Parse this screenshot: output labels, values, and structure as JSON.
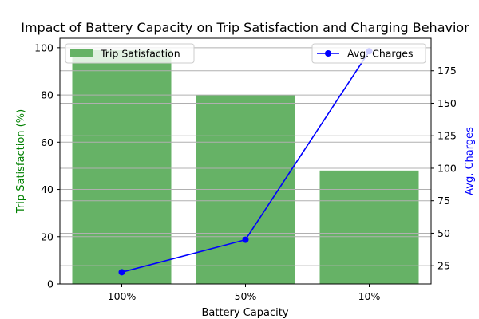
{
  "chart_data": {
    "type": "bar",
    "title": "Impact of Battery Capacity on Trip Satisfaction and Charging Behavior",
    "xlabel": "Battery Capacity",
    "categories": [
      "100%",
      "50%",
      "10%"
    ],
    "grid": true,
    "series": [
      {
        "name": "Trip Satisfaction",
        "type": "bar",
        "axis": "left",
        "color": "#66b266",
        "values": [
          99,
          80,
          48
        ]
      },
      {
        "name": "Avg. Charges",
        "type": "line",
        "axis": "right",
        "color": "#0000ff",
        "marker": "circle",
        "values": [
          20,
          45,
          190
        ]
      }
    ],
    "y_left": {
      "label": "Trip Satisfaction (%)",
      "label_color": "#008000",
      "ylim": [
        0,
        104
      ],
      "ticks": [
        0,
        20,
        40,
        60,
        80,
        100
      ]
    },
    "y_right": {
      "label": "Avg. Charges",
      "label_color": "#0000ff",
      "ylim": [
        11,
        200
      ],
      "ticks": [
        25,
        50,
        75,
        100,
        125,
        150,
        175
      ]
    },
    "legends": [
      {
        "placement": "upper-left",
        "series": "Trip Satisfaction"
      },
      {
        "placement": "upper-right",
        "series": "Avg. Charges"
      }
    ]
  }
}
